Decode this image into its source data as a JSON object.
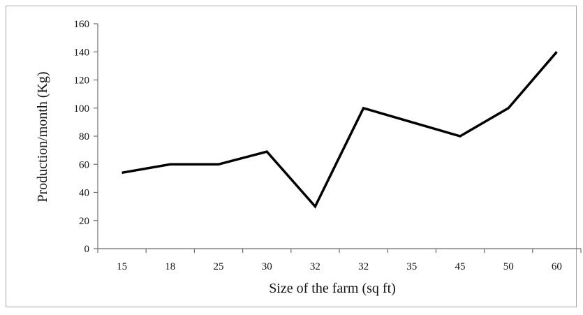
{
  "chart_data": {
    "type": "line",
    "title": "",
    "xlabel": "Size of the farm (sq ft)",
    "ylabel": "Production/month (Kg)",
    "categories": [
      "15",
      "18",
      "25",
      "30",
      "32",
      "32",
      "35",
      "45",
      "50",
      "60"
    ],
    "y_ticks": [
      "0",
      "20",
      "40",
      "60",
      "80",
      "100",
      "120",
      "140",
      "160"
    ],
    "ylim": [
      0,
      160
    ],
    "grid": false,
    "legend": "none",
    "series": [
      {
        "values": [
          54,
          60,
          60,
          69,
          30,
          100,
          90,
          80,
          100,
          140
        ],
        "color": "#000000"
      }
    ]
  }
}
